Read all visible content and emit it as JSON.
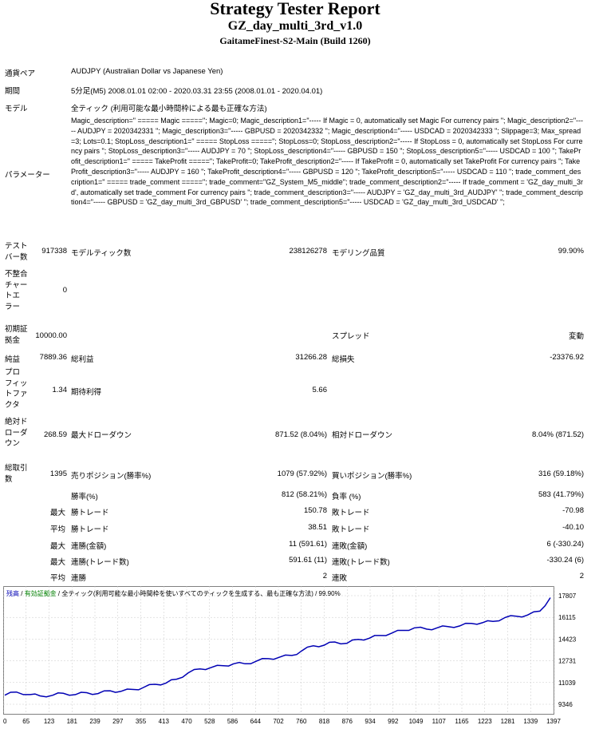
{
  "header": {
    "title": "Strategy Tester Report",
    "ea_name": "GZ_day_multi_3rd_v1.0",
    "server": "GaitameFinest-S2-Main (Build 1260)"
  },
  "info": {
    "symbol_label": "通貨ペア",
    "symbol_value": "AUDJPY (Australian Dollar vs Japanese Yen)",
    "period_label": "期間",
    "period_value": "5分足(M5) 2008.01.01 02:00 - 2020.03.31 23:55 (2008.01.01 - 2020.04.01)",
    "model_label": "モデル",
    "model_value": "全ティック (利用可能な最小時間枠による最も正確な方法)",
    "params_label": "パラメーター",
    "params_value": "Magic_description=\" ===== Magic =====\"; Magic=0; Magic_description1=\"----- If Magic = 0, automatically set Magic For currency pairs \"; Magic_description2=\"----- AUDJPY = 2020342331 \"; Magic_description3=\"----- GBPUSD = 2020342332 \"; Magic_description4=\"----- USDCAD = 2020342333 \"; Slippage=3; Max_spread=3; Lots=0.1; StopLoss_description1=\" ===== StopLoss =====\"; StopLoss=0; StopLoss_description2=\"----- If StopLoss = 0, automatically set StopLoss For currency pairs \"; StopLoss_description3=\"----- AUDJPY = 70 \"; StopLoss_description4=\"----- GBPUSD = 150 \"; StopLoss_description5=\"----- USDCAD = 100 \"; TakeProfit_description1=\" ===== TakeProfit =====\"; TakeProfit=0; TakeProfit_description2=\"----- If TakeProfit = 0, automatically set TakeProfit For currency pairs \"; TakeProfit_description3=\"----- AUDJPY = 160 \"; TakeProfit_description4=\"----- GBPUSD = 120 \"; TakeProfit_description5=\"----- USDCAD = 110 \"; trade_comment_description1=\" ===== trade_comment =====\"; trade_comment=\"GZ_System_M5_middle\"; trade_comment_description2=\"----- If trade_comment = 'GZ_day_multi_3rd', automatically set trade_comment For currency pairs \"; trade_comment_description3=\"----- AUDJPY = 'GZ_day_multi_3rd_AUDJPY' \"; trade_comment_description4=\"----- GBPUSD = 'GZ_day_multi_3rd_GBPUSD' \"; trade_comment_description5=\"----- USDCAD = 'GZ_day_multi_3rd_USDCAD' \";"
  },
  "stats": {
    "bars_label": "テスト\nバー数",
    "bars_value": "917338",
    "ticks_label": "モデルティック数",
    "ticks_value": "238126278",
    "quality_label": "モデリング品質",
    "quality_value": "99.90%",
    "mismatch_label": "不整合\nチャー\nトエ\nラー",
    "mismatch_value": "0",
    "deposit_label": "初期証\n拠金",
    "deposit_value": "10000.00",
    "spread_label": "スプレッド",
    "spread_value": "変動",
    "net_label": "純益",
    "net_value": "7889.36",
    "gross_profit_label": "総利益",
    "gross_profit_value": "31266.28",
    "gross_loss_label": "総損失",
    "gross_loss_value": "-23376.92",
    "pf_label": "プロ\nフィッ\nトファ\nクタ",
    "pf_value": "1.34",
    "expected_label": "期待利得",
    "expected_value": "5.66",
    "abs_dd_label": "絶対ド\nローダ\nウン",
    "abs_dd_value": "268.59",
    "max_dd_label": "最大ドローダウン",
    "max_dd_value": "871.52 (8.04%)",
    "rel_dd_label": "相対ドローダウン",
    "rel_dd_value": "8.04% (871.52)",
    "total_label": "総取引\n数",
    "total_value": "1395",
    "short_label": "売りポジション(勝率%)",
    "short_value": "1079 (57.92%)",
    "long_label": "買いポジション(勝率%)",
    "long_value": "316 (59.18%)",
    "win_label": "勝率(%)",
    "win_value": "812 (58.21%)",
    "loss_label": "負率 (%)",
    "loss_value": "583 (41.79%)",
    "largest": "最大",
    "avg": "平均",
    "lw_label": "勝トレード",
    "lw_value": "150.78",
    "ll_label": "敗トレード",
    "ll_value": "-70.98",
    "aw_label": "勝トレード",
    "aw_value": "38.51",
    "al_label": "敗トレード",
    "al_value": "-40.10",
    "mcw_label": "連勝(金額)",
    "mcw_value": "11 (591.61)",
    "mcl_label": "連敗(金額)",
    "mcl_value": "6 (-330.24)",
    "mcp_label": "連勝(トレード数)",
    "mcp_value": "591.61 (11)",
    "mcpl_label": "連敗(トレード数)",
    "mcpl_value": "-330.24 (6)",
    "acw_label": "連勝",
    "acw_value": "2",
    "acl_label": "連敗",
    "acl_value": "2"
  },
  "chart_legend": {
    "balance": "残高",
    "equity": "有効証拠金",
    "model": "全ティック(利用可能な最小時間枠を使いすべてのティックを生成する、最も正確な方法)",
    "quality": "99.90%"
  },
  "colors": {
    "balance_line": "#0000b4",
    "grid": "#c8c8c8"
  },
  "chart_data": {
    "type": "line",
    "x_ticks": [
      "0",
      "65",
      "123",
      "181",
      "239",
      "297",
      "355",
      "413",
      "470",
      "528",
      "586",
      "644",
      "702",
      "760",
      "818",
      "876",
      "934",
      "992",
      "1049",
      "1107",
      "1165",
      "1223",
      "1281",
      "1339",
      "1397"
    ],
    "y_ticks": [
      "17807",
      "16115",
      "14423",
      "12731",
      "11039",
      "9346"
    ],
    "ylim": [
      9346,
      17807
    ],
    "xlim": [
      0,
      1397
    ],
    "series": [
      {
        "values": [
          [
            0,
            10050
          ],
          [
            30,
            10300
          ],
          [
            65,
            10100
          ],
          [
            90,
            10000
          ],
          [
            123,
            10050
          ],
          [
            150,
            10200
          ],
          [
            181,
            10100
          ],
          [
            210,
            10250
          ],
          [
            239,
            10180
          ],
          [
            270,
            10400
          ],
          [
            297,
            10350
          ],
          [
            330,
            10500
          ],
          [
            355,
            10650
          ],
          [
            385,
            10900
          ],
          [
            413,
            11000
          ],
          [
            440,
            11300
          ],
          [
            470,
            11800
          ],
          [
            500,
            12100
          ],
          [
            528,
            12200
          ],
          [
            560,
            12350
          ],
          [
            586,
            12500
          ],
          [
            615,
            12500
          ],
          [
            644,
            12700
          ],
          [
            675,
            12900
          ],
          [
            702,
            13000
          ],
          [
            735,
            13150
          ],
          [
            760,
            13500
          ],
          [
            790,
            13900
          ],
          [
            818,
            13950
          ],
          [
            845,
            14200
          ],
          [
            876,
            14100
          ],
          [
            905,
            14400
          ],
          [
            934,
            14500
          ],
          [
            960,
            14700
          ],
          [
            992,
            14900
          ],
          [
            1020,
            15100
          ],
          [
            1049,
            15300
          ],
          [
            1080,
            15200
          ],
          [
            1107,
            15300
          ],
          [
            1135,
            15400
          ],
          [
            1165,
            15450
          ],
          [
            1195,
            15650
          ],
          [
            1223,
            15700
          ],
          [
            1250,
            15800
          ],
          [
            1281,
            16100
          ],
          [
            1310,
            16200
          ],
          [
            1339,
            16300
          ],
          [
            1370,
            16600
          ],
          [
            1397,
            17650
          ]
        ]
      }
    ]
  }
}
